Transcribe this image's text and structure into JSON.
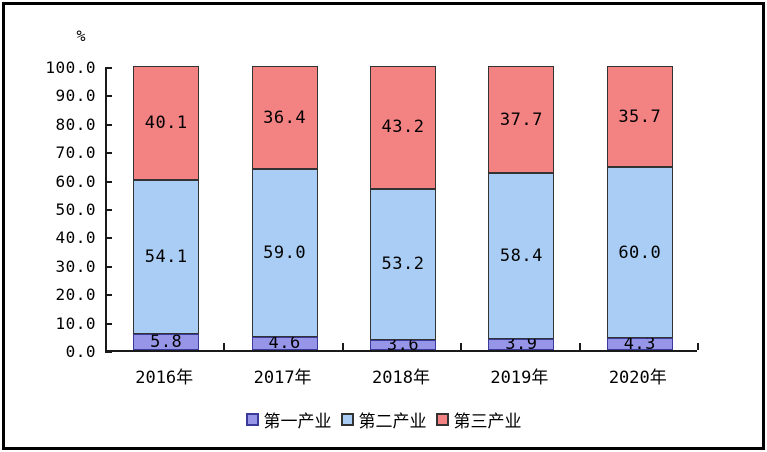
{
  "figure": {
    "background_color": "#ffffff",
    "frame_color": "#000000",
    "axis_color": "#1a1a1a",
    "text_color": "#000000"
  },
  "chart_data": {
    "type": "bar",
    "stacked": true,
    "title": "",
    "unit_label": "%",
    "xlabel": "",
    "ylabel": "%",
    "categories": [
      "2016年",
      "2017年",
      "2018年",
      "2019年",
      "2020年"
    ],
    "series": [
      {
        "name": "第一产业",
        "color": "#9795E8",
        "border_color": "#3A3A99",
        "values": [
          5.8,
          4.6,
          3.6,
          3.9,
          4.3
        ]
      },
      {
        "name": "第二产业",
        "color": "#A9CDF4",
        "border_color": "#333333",
        "values": [
          54.1,
          59.0,
          53.2,
          58.4,
          60.0
        ]
      },
      {
        "name": "第三产业",
        "color": "#F38282",
        "border_color": "#333333",
        "values": [
          40.1,
          36.4,
          43.2,
          37.7,
          35.7
        ]
      }
    ],
    "y_ticks": [
      100.0,
      90.0,
      80.0,
      70.0,
      60.0,
      50.0,
      40.0,
      30.0,
      20.0,
      10.0,
      0.0
    ],
    "ylim": [
      0,
      100
    ],
    "grid": false,
    "value_labels": true,
    "legend_position": "bottom"
  }
}
